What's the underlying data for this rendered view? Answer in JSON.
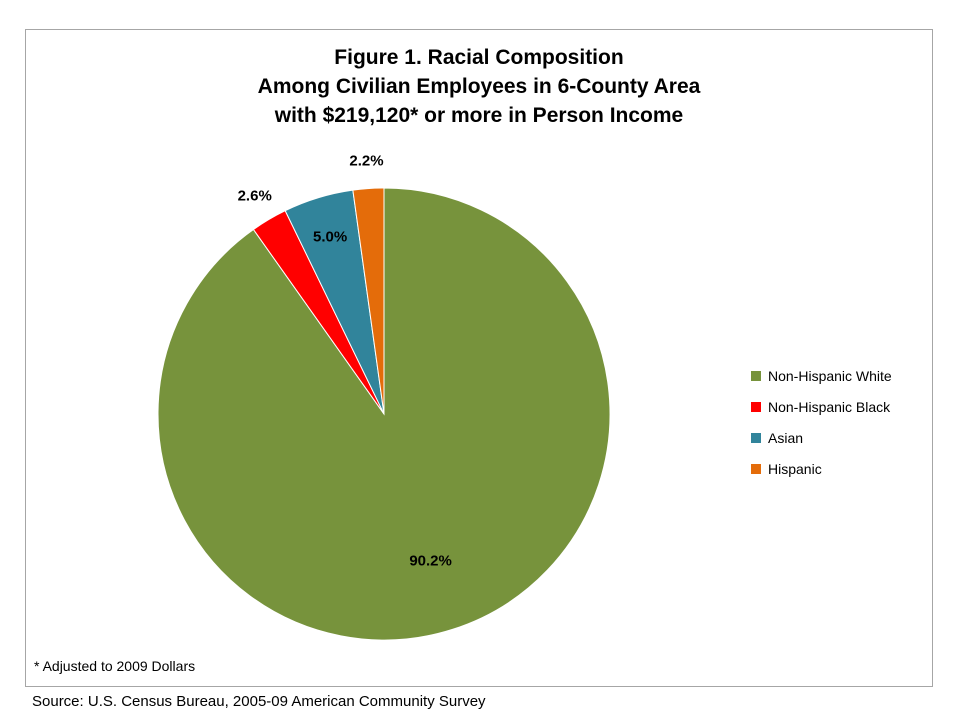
{
  "chart_data": {
    "type": "pie",
    "title": [
      "Figure 1. Racial Composition",
      "Among Civilian Employees in 6-County Area",
      "with $219,120* or more in Person Income"
    ],
    "slices": [
      {
        "label": "Non-Hispanic White",
        "value": 90.2,
        "data_label": "90.2%",
        "color": "#77933c"
      },
      {
        "label": "Non-Hispanic Black",
        "value": 2.6,
        "data_label": "2.6%",
        "color": "#ff0000"
      },
      {
        "label": "Asian",
        "value": 5.0,
        "data_label": "5.0%",
        "color": "#31849b"
      },
      {
        "label": "Hispanic",
        "value": 2.2,
        "data_label": "2.2%",
        "color": "#e46c0a"
      }
    ],
    "start": "12 o'clock",
    "direction": "clockwise",
    "legend_position": "right"
  },
  "footnote": "* Adjusted to 2009 Dollars",
  "source": "Source:  U.S. Census Bureau, 2005-09 American Community Survey"
}
